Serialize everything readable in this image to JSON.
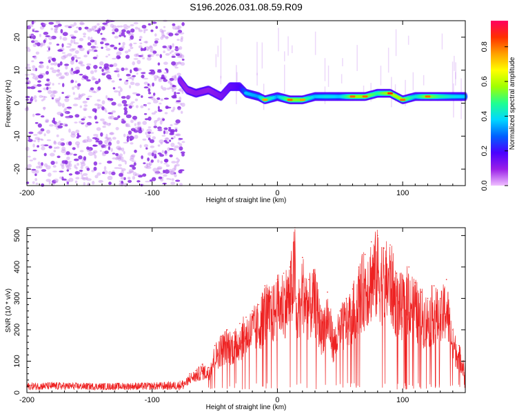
{
  "title": "S196.2026.031.08.59.R09",
  "colors": {
    "line": "#ee2222",
    "axis": "#000000",
    "background": "#ffffff",
    "colormap": [
      "#f0c0ff",
      "#9a20e8",
      "#4a00ff",
      "#0060ff",
      "#00d8ff",
      "#20ff90",
      "#a0ff00",
      "#ffff00",
      "#ffa000",
      "#ff3000",
      "#ff0060"
    ]
  },
  "chart_data": [
    {
      "type": "heatmap",
      "title": "S196.2026.031.08.59.R09",
      "xlabel": "Height of straight line (km)",
      "ylabel": "Frequency (Hz)",
      "xlim": [
        -200,
        150
      ],
      "ylim": [
        -25,
        25
      ],
      "xticks": [
        -200,
        -100,
        0,
        100
      ],
      "xtick_labels": [
        "-200",
        "-100",
        "0",
        "100"
      ],
      "yticks": [
        20,
        10,
        0,
        -10,
        -20
      ],
      "ytick_labels": [
        "20",
        "10",
        "0",
        "-10",
        "-20"
      ],
      "colorbar": {
        "label": "Normalized spectral amplitude",
        "range": [
          0.0,
          0.95
        ],
        "ticks": [
          0.0,
          0.2,
          0.4,
          0.6,
          0.8
        ],
        "tick_labels": [
          "0.0",
          "0.2",
          "0.4",
          "0.6",
          "0.8"
        ]
      },
      "noise_region_x": [
        -200,
        -75
      ],
      "ridge": [
        {
          "x": -78,
          "freq": 7,
          "amp": 0.22
        },
        {
          "x": -72,
          "freq": 4,
          "amp": 0.18
        },
        {
          "x": -65,
          "freq": 3,
          "amp": 0.22
        },
        {
          "x": -55,
          "freq": 4,
          "amp": 0.2
        },
        {
          "x": -45,
          "freq": 2,
          "amp": 0.25
        },
        {
          "x": -38,
          "freq": 5,
          "amp": 0.3
        },
        {
          "x": -30,
          "freq": 5,
          "amp": 0.35
        },
        {
          "x": -25,
          "freq": 3,
          "amp": 0.55
        },
        {
          "x": -15,
          "freq": 2,
          "amp": 0.5
        },
        {
          "x": -10,
          "freq": 1,
          "amp": 0.8
        },
        {
          "x": 0,
          "freq": 2,
          "amp": 0.5
        },
        {
          "x": 10,
          "freq": 1,
          "amp": 0.85
        },
        {
          "x": 20,
          "freq": 1,
          "amp": 0.8
        },
        {
          "x": 30,
          "freq": 2,
          "amp": 0.55
        },
        {
          "x": 40,
          "freq": 2,
          "amp": 0.6
        },
        {
          "x": 50,
          "freq": 2,
          "amp": 0.55
        },
        {
          "x": 60,
          "freq": 2,
          "amp": 0.85
        },
        {
          "x": 70,
          "freq": 2,
          "amp": 0.85
        },
        {
          "x": 80,
          "freq": 3,
          "amp": 0.7
        },
        {
          "x": 90,
          "freq": 3,
          "amp": 0.9
        },
        {
          "x": 100,
          "freq": 1,
          "amp": 0.85
        },
        {
          "x": 110,
          "freq": 2,
          "amp": 0.6
        },
        {
          "x": 120,
          "freq": 2,
          "amp": 0.85
        },
        {
          "x": 130,
          "freq": 2,
          "amp": 0.7
        },
        {
          "x": 140,
          "freq": 2,
          "amp": 0.6
        },
        {
          "x": 150,
          "freq": 2,
          "amp": 0.55
        }
      ]
    },
    {
      "type": "line",
      "xlabel": "Height of straight line (km)",
      "ylabel": "SNR (10 * v/v)",
      "xlim": [
        -200,
        150
      ],
      "ylim": [
        0,
        525
      ],
      "xticks": [
        -200,
        -100,
        0,
        100
      ],
      "xtick_labels": [
        "-200",
        "-100",
        "0",
        "100"
      ],
      "yticks": [
        0,
        100,
        200,
        300,
        400,
        500
      ],
      "ytick_labels": [
        "0",
        "100",
        "200",
        "300",
        "400",
        "500"
      ],
      "series": [
        {
          "name": "SNR",
          "x": [
            -200,
            -180,
            -160,
            -140,
            -120,
            -100,
            -80,
            -75,
            -70,
            -65,
            -60,
            -55,
            -50,
            -45,
            -40,
            -35,
            -30,
            -25,
            -20,
            -15,
            -10,
            -5,
            0,
            5,
            10,
            14,
            15,
            20,
            25,
            30,
            35,
            40,
            45,
            50,
            55,
            60,
            65,
            70,
            75,
            80,
            85,
            90,
            95,
            100,
            105,
            110,
            115,
            120,
            125,
            130,
            135,
            140,
            145,
            150
          ],
          "values": [
            18,
            20,
            18,
            17,
            18,
            19,
            22,
            30,
            60,
            70,
            90,
            80,
            150,
            180,
            200,
            190,
            220,
            240,
            260,
            280,
            340,
            320,
            360,
            380,
            400,
            525,
            300,
            430,
            360,
            380,
            260,
            320,
            200,
            260,
            300,
            330,
            400,
            440,
            480,
            500,
            460,
            470,
            380,
            360,
            400,
            350,
            320,
            300,
            340,
            300,
            360,
            200,
            150,
            100
          ]
        }
      ]
    }
  ]
}
